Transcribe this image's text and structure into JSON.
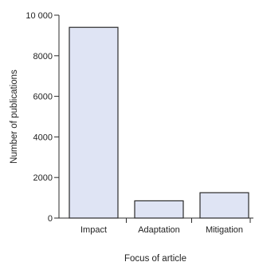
{
  "chart_data": {
    "type": "bar",
    "categories": [
      "Impact",
      "Adaptation",
      "Mitigation"
    ],
    "values": [
      9400,
      850,
      1250
    ],
    "title": "",
    "xlabel": "Focus of article",
    "ylabel": "Number of publications",
    "ylim": [
      0,
      10000
    ],
    "yticks": [
      0,
      2000,
      4000,
      6000,
      8000,
      10000
    ],
    "ytick_labels": [
      "0",
      "2000",
      "4000",
      "6000",
      "8000",
      "10 000"
    ],
    "grid": false,
    "legend": "none",
    "colors": {
      "bar_fill": "#dfe4f4",
      "bar_stroke": "#2b2b2b",
      "axis": "#2b2b2b"
    }
  }
}
